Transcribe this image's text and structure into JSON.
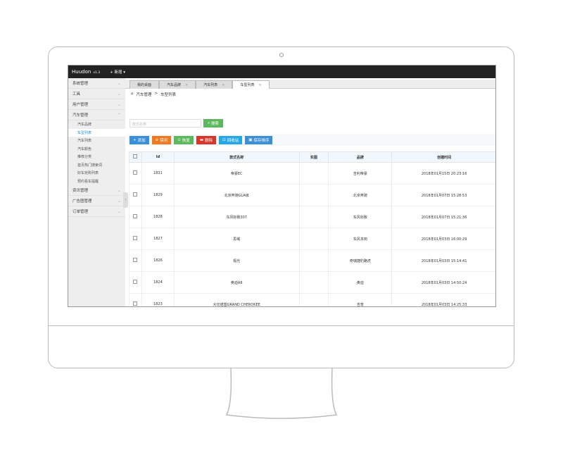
{
  "app": {
    "logo": "Huudon",
    "version": "v1.3",
    "new_label": "新增"
  },
  "sidebar": {
    "items": [
      {
        "label": "系统管理"
      },
      {
        "label": "工具"
      },
      {
        "label": "用户管理"
      },
      {
        "label": "汽车管理",
        "expanded": true
      }
    ],
    "sub_items": [
      {
        "label": "汽车品牌"
      },
      {
        "label": "车型列表",
        "active": true
      },
      {
        "label": "汽车列表"
      },
      {
        "label": "汽车颜色"
      },
      {
        "label": "推荐分类"
      },
      {
        "label": "首页热门搜索词"
      },
      {
        "label": "好车抢购列表"
      },
      {
        "label": "预约看车提醒"
      }
    ],
    "items_after": [
      {
        "label": "资讯管理"
      },
      {
        "label": "广告图管理"
      },
      {
        "label": "订单管理"
      }
    ]
  },
  "tabs": [
    {
      "label": "我的桌面"
    },
    {
      "label": "汽车品牌"
    },
    {
      "label": "汽车列表"
    },
    {
      "label": "车型列表",
      "active": true
    }
  ],
  "breadcrumb": {
    "parent": "汽车管理",
    "sep": ">",
    "current": "车型列表"
  },
  "search": {
    "placeholder": "款式名称",
    "button": "搜索"
  },
  "toolbar": [
    {
      "label": "添加",
      "color": "#3b8fd9",
      "icon": "plus-icon",
      "glyph": "+"
    },
    {
      "label": "禁用",
      "color": "#f0781e",
      "icon": "ban-icon",
      "glyph": "⊖"
    },
    {
      "label": "恢复",
      "color": "#5cb85c",
      "icon": "restore-icon",
      "glyph": "⊙"
    },
    {
      "label": "删除",
      "color": "#d9362b",
      "icon": "trash-icon",
      "glyph": "▬"
    },
    {
      "label": "回收站",
      "color": "#27a8e6",
      "icon": "recycle-icon",
      "glyph": "⊡"
    },
    {
      "label": "保存排序",
      "color": "#3b8fd9",
      "icon": "save-icon",
      "glyph": "▣"
    }
  ],
  "table": {
    "columns": [
      "Id",
      "款式名称",
      "实图",
      "品牌",
      "创建时间"
    ],
    "rows": [
      [
        "1831",
        "帝豪EC",
        "",
        "吉利帝豪",
        "2018年01月15日 20:23:16"
      ],
      [
        "1829",
        "北京奔驰GLA级",
        "",
        "北京奔驰",
        "2018年01月07日 15:28:53"
      ],
      [
        "1828",
        "东风标致307",
        "",
        "东风标致",
        "2018年01月07日 15:21:36"
      ],
      [
        "1827",
        "思域",
        "",
        "东风本田",
        "2018年01月03日 16:00:29"
      ],
      [
        "1826",
        "极光",
        "",
        "奇瑞捷豹路虎",
        "2018年01月03日 15:14:41"
      ],
      [
        "1824",
        "奥迪A8",
        "",
        "奥迪",
        "2018年01月03日 14:50:24"
      ],
      [
        "1823",
        "大切诺基GRAND CHEROKEE",
        "",
        "吉普",
        "2018年01月03日 14:25:33"
      ]
    ]
  }
}
